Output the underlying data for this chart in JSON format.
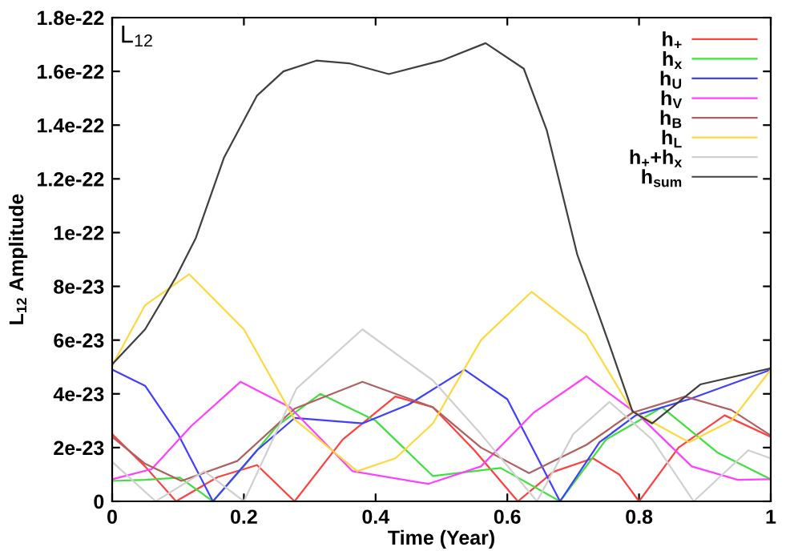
{
  "chart_data": {
    "type": "line",
    "xlabel": "Time (Year)",
    "ylabel": "L$_{12}$ Amplitude",
    "annotations": [
      "L$_{12}$"
    ],
    "xlim": [
      0,
      1
    ],
    "ylim": [
      0,
      1.8e-22
    ],
    "xticks": [
      0,
      0.2,
      0.4,
      0.6,
      0.8,
      1
    ],
    "yticks": [
      0,
      {
        "value": 2e-23,
        "label": "2e-23"
      },
      {
        "value": 4e-23,
        "label": "4e-23"
      },
      {
        "value": 6e-23,
        "label": "6e-23"
      },
      {
        "value": 8e-23,
        "label": "8e-23"
      },
      {
        "value": 1e-22,
        "label": "1e-22"
      },
      {
        "value": 1.2e-22,
        "label": "1.2e-22"
      },
      {
        "value": 1.4e-22,
        "label": "1.4e-22"
      },
      {
        "value": 1.6e-22,
        "label": "1.6e-22"
      },
      {
        "value": 1.8e-22,
        "label": "1.8e-22"
      }
    ],
    "grid": false,
    "legend": "top right",
    "marker": "none",
    "line_style": "solid",
    "series": [
      {
        "name": "h$_{+}$",
        "color": "#ff4040",
        "x": [
          0,
          0.05,
          0.097,
          0.16,
          0.22,
          0.277,
          0.35,
          0.43,
          0.487,
          0.55,
          0.616,
          0.67,
          0.73,
          0.77,
          0.8,
          0.86,
          0.93,
          1
        ],
        "values": [
          2.5e-23,
          1.3e-23,
          0,
          9e-24,
          1.35e-23,
          0,
          2.3e-23,
          3.9e-23,
          3.5e-23,
          1.9e-23,
          0,
          1.1e-23,
          1.6e-23,
          1e-23,
          0,
          2e-23,
          3.2e-23,
          2.4e-23
        ]
      },
      {
        "name": "h$_{x}$",
        "color": "#40e040",
        "x": [
          0,
          0.05,
          0.103,
          0.153,
          0.2,
          0.25,
          0.316,
          0.4,
          0.487,
          0.59,
          0.68,
          0.75,
          0.835,
          0.92,
          1
        ],
        "values": [
          7.6e-24,
          8e-24,
          8.8e-24,
          0,
          1.3e-23,
          2.8e-23,
          4e-23,
          3e-23,
          9.4e-24,
          1.24e-23,
          0,
          2.3e-23,
          3.5e-23,
          1.8e-23,
          8.2e-24
        ]
      },
      {
        "name": "h$_{U}$",
        "color": "#4040ff",
        "x": [
          0,
          0.05,
          0.1,
          0.153,
          0.22,
          0.277,
          0.38,
          0.45,
          0.535,
          0.6,
          0.68,
          0.74,
          0.795,
          0.876,
          1
        ],
        "values": [
          4.9e-23,
          4.3e-23,
          2.5e-23,
          0,
          1.9e-23,
          3.1e-23,
          2.9e-23,
          3.6e-23,
          4.9e-23,
          3.8e-23,
          0,
          2.2e-23,
          3.2e-23,
          3.8e-23,
          4.9e-23
        ]
      },
      {
        "name": "h$_{V}$",
        "color": "#ff40ff",
        "x": [
          0,
          0.06,
          0.12,
          0.195,
          0.27,
          0.365,
          0.48,
          0.56,
          0.64,
          0.72,
          0.8,
          0.88,
          0.95,
          1
        ],
        "values": [
          8.2e-24,
          1.2e-23,
          2.8e-23,
          4.45e-23,
          3.5e-23,
          1.12e-23,
          6.5e-24,
          1.3e-23,
          3.3e-23,
          4.65e-23,
          3.2e-23,
          1.3e-23,
          8e-24,
          8.2e-24
        ]
      },
      {
        "name": "h$_{B}$",
        "color": "#b06060",
        "x": [
          0,
          0.05,
          0.105,
          0.19,
          0.277,
          0.38,
          0.487,
          0.56,
          0.633,
          0.72,
          0.79,
          0.87,
          0.94,
          1
        ],
        "values": [
          2.4e-23,
          1.4e-23,
          7.6e-24,
          1.5e-23,
          3.45e-23,
          4.45e-23,
          3.5e-23,
          2e-23,
          1.05e-23,
          2.1e-23,
          3.3e-23,
          3.9e-23,
          3.4e-23,
          2.45e-23
        ]
      },
      {
        "name": "h$_{L}$",
        "color": "#ffd840",
        "x": [
          0,
          0.05,
          0.117,
          0.2,
          0.277,
          0.372,
          0.43,
          0.487,
          0.56,
          0.637,
          0.72,
          0.79,
          0.876,
          0.94,
          1
        ],
        "values": [
          5.05e-23,
          7.3e-23,
          8.45e-23,
          6.4e-23,
          3.05e-23,
          1.12e-23,
          1.6e-23,
          2.9e-23,
          6e-23,
          7.8e-23,
          6.2e-23,
          3.35e-23,
          2.2e-23,
          3e-23,
          4.9e-23
        ]
      },
      {
        "name": "h$_{+}$+h$_{x}$",
        "color": "#d0d0d0",
        "x": [
          0,
          0.066,
          0.14,
          0.2,
          0.28,
          0.38,
          0.487,
          0.56,
          0.645,
          0.7,
          0.755,
          0.82,
          0.883,
          0.966,
          1
        ],
        "values": [
          1.47e-23,
          0,
          1.12e-23,
          0,
          4.2e-23,
          6.4e-23,
          4.5e-23,
          2.5e-23,
          0,
          2.5e-23,
          3.7e-23,
          2.3e-23,
          0,
          1.9e-23,
          1.6e-23
        ]
      },
      {
        "name": "h$_{sum}$",
        "color": "#404040",
        "x": [
          0,
          0.05,
          0.097,
          0.127,
          0.17,
          0.22,
          0.26,
          0.31,
          0.36,
          0.42,
          0.5,
          0.567,
          0.625,
          0.66,
          0.706,
          0.754,
          0.79,
          0.82,
          0.893,
          1
        ],
        "values": [
          5.1e-23,
          6.4e-23,
          8.35e-23,
          9.8e-23,
          1.28e-22,
          1.51e-22,
          1.6e-22,
          1.64e-22,
          1.63e-22,
          1.59e-22,
          1.64e-22,
          1.705e-22,
          1.61e-22,
          1.38e-22,
          9.2e-23,
          5.9e-23,
          3.35e-23,
          2.9e-23,
          4.35e-23,
          4.95e-23
        ]
      }
    ]
  }
}
